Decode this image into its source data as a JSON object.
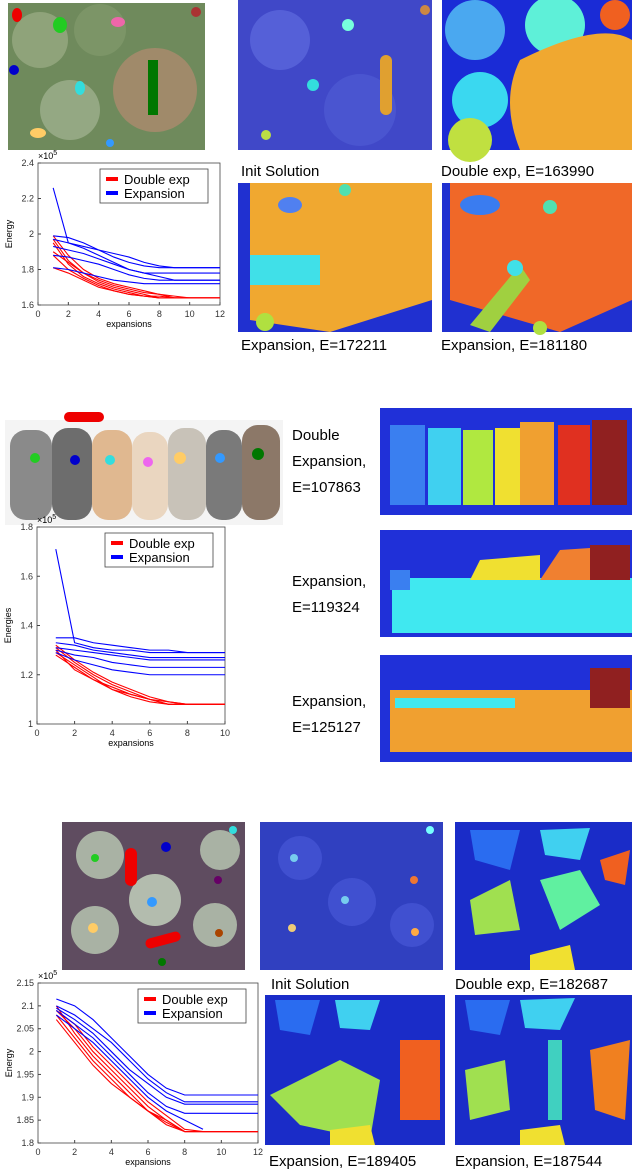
{
  "chart_data": [
    {
      "type": "line",
      "xlabel": "expansions",
      "ylabel": "Energy",
      "y_offset_text": "×10",
      "y_offset_exponent": "5",
      "x": [
        1,
        2,
        3,
        4,
        5,
        6,
        7,
        8,
        9,
        10,
        11,
        12
      ],
      "xlim": [
        0,
        12
      ],
      "xticks": [
        0,
        2,
        4,
        6,
        8,
        10,
        12
      ],
      "ylim": [
        1.6,
        2.4
      ],
      "yticks": [
        1.6,
        1.8,
        2,
        2.2,
        2.4
      ],
      "legend": "upper right",
      "series": [
        {
          "name": "Double exp",
          "color": "#ff0000",
          "values": [
            [
              1.97,
              1.85,
              1.78,
              1.73,
              1.7,
              1.68,
              1.66,
              1.64,
              1.64,
              1.64,
              1.64,
              1.64
            ],
            [
              1.95,
              1.83,
              1.76,
              1.72,
              1.69,
              1.67,
              1.65,
              1.64,
              1.64,
              1.64,
              1.64,
              1.64
            ],
            [
              1.88,
              1.8,
              1.75,
              1.71,
              1.68,
              1.66,
              1.65,
              1.64,
              1.64,
              1.64,
              1.64,
              1.64
            ],
            [
              1.81,
              1.78,
              1.74,
              1.7,
              1.68,
              1.66,
              1.65,
              1.65,
              1.64,
              1.64,
              1.64,
              1.64
            ],
            [
              1.9,
              1.84,
              1.78,
              1.74,
              1.71,
              1.69,
              1.67,
              1.66,
              1.64,
              1.64,
              1.64,
              1.64
            ],
            [
              1.99,
              1.88,
              1.8,
              1.75,
              1.72,
              1.7,
              1.68,
              1.66,
              1.65,
              1.64,
              1.64,
              1.64
            ]
          ]
        },
        {
          "name": "Expansion",
          "color": "#0000ff",
          "values": [
            [
              2.26,
              1.95,
              1.93,
              1.91,
              1.89,
              1.87,
              1.84,
              1.82,
              1.81,
              1.81,
              1.81,
              1.81
            ],
            [
              1.99,
              1.98,
              1.95,
              1.91,
              1.87,
              1.84,
              1.82,
              1.81,
              1.81,
              1.81,
              1.81,
              1.81
            ],
            [
              1.97,
              1.95,
              1.92,
              1.88,
              1.84,
              1.8,
              1.78,
              1.78,
              1.78,
              1.78,
              1.78,
              1.78
            ],
            [
              1.93,
              1.91,
              1.89,
              1.86,
              1.83,
              1.8,
              1.78,
              1.76,
              1.74,
              1.74,
              1.74,
              1.74
            ],
            [
              1.88,
              1.87,
              1.85,
              1.83,
              1.8,
              1.77,
              1.75,
              1.74,
              1.74,
              1.74,
              1.74,
              1.74
            ],
            [
              1.81,
              1.8,
              1.78,
              1.76,
              1.74,
              1.73,
              1.72,
              1.72,
              1.72,
              1.72,
              1.72,
              1.72
            ]
          ]
        }
      ]
    },
    {
      "type": "line",
      "xlabel": "expansions",
      "ylabel": "Energies",
      "y_offset_text": "×10",
      "y_offset_exponent": "5",
      "x": [
        1,
        2,
        3,
        4,
        5,
        6,
        7,
        8,
        9,
        10
      ],
      "xlim": [
        0,
        10
      ],
      "xticks": [
        0,
        2,
        4,
        6,
        8,
        10
      ],
      "ylim": [
        1,
        1.8
      ],
      "yticks": [
        1,
        1.2,
        1.4,
        1.6,
        1.8
      ],
      "legend": "upper right",
      "series": [
        {
          "name": "Double exp",
          "color": "#ff0000",
          "values": [
            [
              1.31,
              1.25,
              1.2,
              1.16,
              1.13,
              1.1,
              1.08,
              1.08,
              1.08,
              1.08
            ],
            [
              1.3,
              1.22,
              1.18,
              1.15,
              1.12,
              1.1,
              1.09,
              1.08,
              1.08,
              1.08
            ],
            [
              1.29,
              1.24,
              1.19,
              1.14,
              1.11,
              1.09,
              1.08,
              1.08,
              1.08,
              1.08
            ],
            [
              1.32,
              1.26,
              1.21,
              1.17,
              1.14,
              1.11,
              1.09,
              1.08,
              1.08,
              1.08
            ],
            [
              1.28,
              1.23,
              1.18,
              1.14,
              1.12,
              1.1,
              1.08,
              1.08,
              1.08,
              1.08
            ]
          ]
        },
        {
          "name": "Expansion",
          "color": "#0000ff",
          "values": [
            [
              1.71,
              1.33,
              1.31,
              1.3,
              1.3,
              1.29,
              1.29,
              1.29,
              1.29,
              1.29
            ],
            [
              1.35,
              1.35,
              1.33,
              1.32,
              1.31,
              1.3,
              1.3,
              1.29,
              1.29,
              1.29
            ],
            [
              1.33,
              1.32,
              1.3,
              1.29,
              1.28,
              1.27,
              1.27,
              1.27,
              1.27,
              1.27
            ],
            [
              1.31,
              1.3,
              1.29,
              1.28,
              1.27,
              1.26,
              1.26,
              1.26,
              1.26,
              1.26
            ],
            [
              1.3,
              1.28,
              1.27,
              1.25,
              1.24,
              1.23,
              1.23,
              1.23,
              1.23,
              1.23
            ],
            [
              1.29,
              1.26,
              1.24,
              1.22,
              1.21,
              1.2,
              1.2,
              1.2,
              1.2,
              1.2
            ]
          ]
        }
      ]
    },
    {
      "type": "line",
      "xlabel": "expansions",
      "ylabel": "Energy",
      "y_offset_text": "×10",
      "y_offset_exponent": "5",
      "x": [
        1,
        2,
        3,
        4,
        5,
        6,
        7,
        8,
        9,
        10,
        11,
        12
      ],
      "xlim": [
        0,
        12
      ],
      "xticks": [
        0,
        2,
        4,
        6,
        8,
        10,
        12
      ],
      "ylim": [
        1.8,
        2.15
      ],
      "yticks": [
        1.8,
        1.85,
        1.9,
        1.95,
        2,
        2.05,
        2.1,
        2.15
      ],
      "legend": "upper right",
      "series": [
        {
          "name": "Double exp",
          "color": "#ff0000",
          "values": [
            [
              2.09,
              2.05,
              2.0,
              1.96,
              1.92,
              1.88,
              1.85,
              1.825,
              1.825,
              1.825,
              1.825,
              1.825
            ],
            [
              2.1,
              2.04,
              1.99,
              1.95,
              1.91,
              1.87,
              1.845,
              1.825,
              1.825,
              1.825,
              1.825,
              1.825
            ],
            [
              2.08,
              2.03,
              1.98,
              1.94,
              1.9,
              1.87,
              1.84,
              1.825,
              1.825,
              1.825,
              1.825,
              1.825
            ],
            [
              2.09,
              2.06,
              2.01,
              1.97,
              1.93,
              1.89,
              1.86,
              1.83,
              1.825,
              1.825,
              1.825,
              1.825
            ],
            [
              2.07,
              2.02,
              1.97,
              1.93,
              1.9,
              1.87,
              1.85,
              1.825,
              1.825,
              1.825,
              1.825,
              1.825
            ]
          ]
        },
        {
          "name": "Expansion",
          "color": "#0000ff",
          "values": [
            [
              2.115,
              2.1,
              2.07,
              2.03,
              1.99,
              1.95,
              1.92,
              1.905,
              1.905,
              1.905,
              1.905,
              1.905
            ],
            [
              2.1,
              2.08,
              2.05,
              2.02,
              1.98,
              1.94,
              1.91,
              1.89,
              1.89,
              1.89,
              1.89,
              1.89
            ],
            [
              2.095,
              2.07,
              2.04,
              2.0,
              1.96,
              1.93,
              1.9,
              1.885,
              1.885,
              1.885,
              1.885,
              1.885
            ],
            [
              2.09,
              2.06,
              2.03,
              1.99,
              1.95,
              1.91,
              1.88,
              1.865,
              1.865,
              1.865,
              1.865,
              1.865
            ],
            [
              2.08,
              2.05,
              2.02,
              1.98,
              1.94,
              1.9,
              1.87,
              1.85,
              1.83,
              null,
              null,
              null
            ]
          ]
        }
      ]
    }
  ],
  "captions": {
    "panel1": [
      "Init Solution",
      "Double exp, E=163990",
      "Expansion,  E=172211",
      "Expansion,  E=181180"
    ],
    "panel2": [
      [
        "Double",
        "Expansion,",
        "E=107863"
      ],
      [
        "Expansion,",
        "E=119324"
      ],
      [
        "Expansion,",
        "E=125127"
      ]
    ],
    "panel3": [
      "Init Solution",
      "Double exp, E=182687",
      "Expansion,  E=189405",
      "Expansion,  E=187544"
    ]
  }
}
